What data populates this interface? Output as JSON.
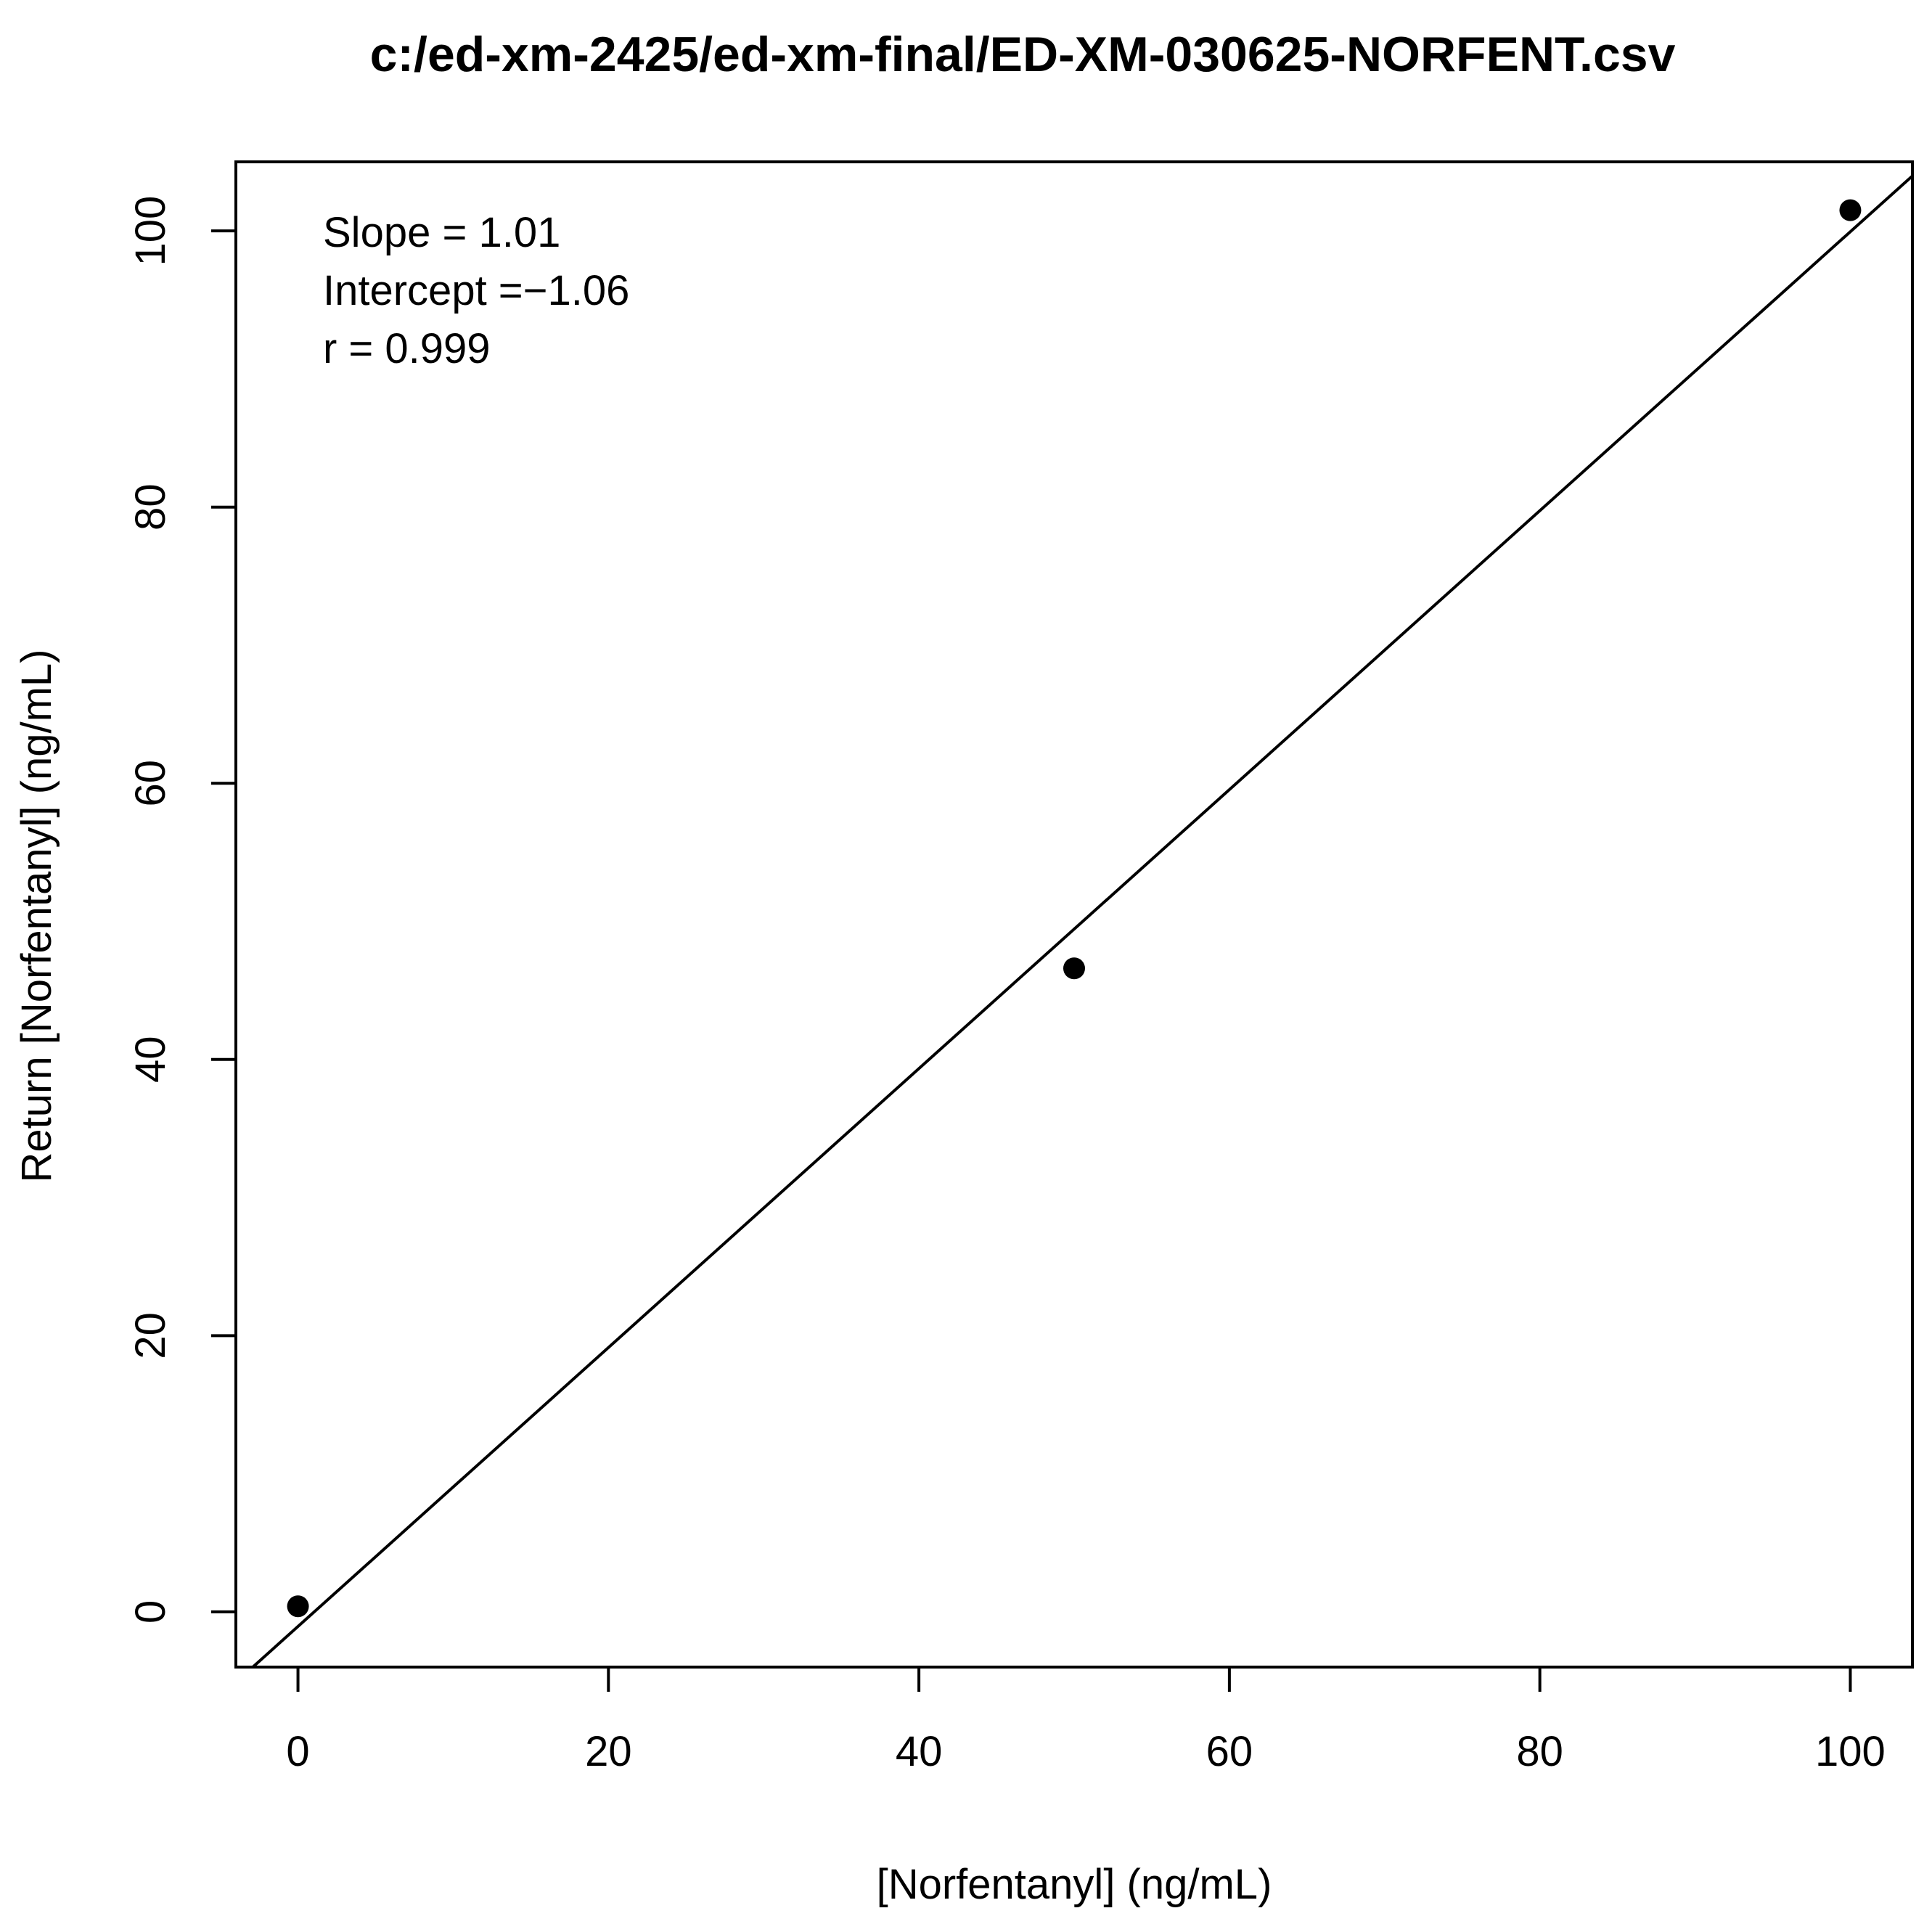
{
  "chart_data": {
    "type": "scatter",
    "title": "c:/ed-xm-2425/ed-xm-final/ED-XM-030625-NORFENT.csv",
    "xlabel": "[Norfentanyl] (ng/mL)",
    "ylabel": "Return [Norfentanyl] (ng/mL)",
    "xlim": [
      -4,
      104
    ],
    "ylim": [
      -4,
      105
    ],
    "x_ticks": [
      0,
      20,
      40,
      60,
      80,
      100
    ],
    "x_tick_labels": [
      "0",
      "20",
      "40",
      "60",
      "80",
      "100"
    ],
    "y_ticks": [
      0,
      20,
      40,
      60,
      80,
      100
    ],
    "y_tick_labels": [
      "0",
      "20",
      "40",
      "60",
      "80",
      "100"
    ],
    "points": [
      {
        "x": 0,
        "y": 0.4
      },
      {
        "x": 50,
        "y": 46.6
      },
      {
        "x": 100,
        "y": 101.5
      }
    ],
    "fit_line": {
      "slope": 1.01,
      "intercept": -1.06
    },
    "annotations": [
      "Slope = 1.01",
      "Intercept =−1.06",
      "r = 0.999"
    ],
    "grid": false,
    "colors": {
      "points": "#000000",
      "line": "#000000",
      "background": "#ffffff"
    }
  }
}
